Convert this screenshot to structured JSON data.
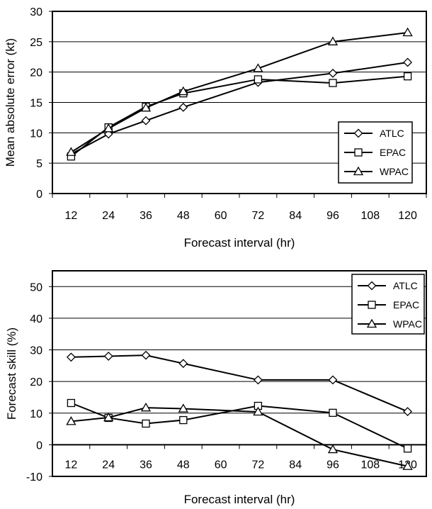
{
  "chart_data": [
    {
      "type": "line",
      "title": "",
      "xlabel": "Forecast interval (hr)",
      "ylabel": "Mean absolute error (kt)",
      "x_ticks": [
        "12",
        "24",
        "36",
        "48",
        "60",
        "72",
        "84",
        "96",
        "108",
        "120"
      ],
      "y_ticks": [
        "0",
        "5",
        "10",
        "15",
        "20",
        "25",
        "30"
      ],
      "ylim": [
        0,
        30
      ],
      "xlim": [
        6,
        126
      ],
      "grid": "horizontal",
      "legend_position": "bottom-right",
      "series": [
        {
          "name": "ATLC",
          "marker": "diamond",
          "x": [
            12,
            24,
            36,
            48,
            72,
            96,
            120
          ],
          "values": [
            6.5,
            9.8,
            12.0,
            14.2,
            18.3,
            19.8,
            21.6
          ]
        },
        {
          "name": "EPAC",
          "marker": "square",
          "x": [
            12,
            24,
            36,
            48,
            72,
            96,
            120
          ],
          "values": [
            6.1,
            10.9,
            14.3,
            16.5,
            18.8,
            18.2,
            19.3
          ]
        },
        {
          "name": "WPAC",
          "marker": "triangle",
          "x": [
            12,
            24,
            36,
            48,
            72,
            96,
            120
          ],
          "values": [
            6.8,
            10.7,
            14.1,
            16.8,
            20.6,
            25.0,
            26.5
          ]
        }
      ]
    },
    {
      "type": "line",
      "title": "",
      "xlabel": "Forecast interval (hr)",
      "ylabel": "Forecast skill (%)",
      "x_ticks": [
        "12",
        "24",
        "36",
        "48",
        "60",
        "72",
        "84",
        "96",
        "108",
        "120"
      ],
      "y_ticks": [
        "-10",
        "0",
        "10",
        "20",
        "30",
        "40",
        "50"
      ],
      "ylim": [
        -10,
        55
      ],
      "xlim": [
        6,
        126
      ],
      "grid": "horizontal",
      "legend_position": "top-right",
      "series": [
        {
          "name": "ATLC",
          "marker": "diamond",
          "x": [
            12,
            24,
            36,
            48,
            72,
            96,
            120
          ],
          "values": [
            27.7,
            28.0,
            28.3,
            25.7,
            20.5,
            20.5,
            10.5
          ]
        },
        {
          "name": "EPAC",
          "marker": "square",
          "x": [
            12,
            24,
            36,
            48,
            72,
            96,
            120
          ],
          "values": [
            13.2,
            8.5,
            6.7,
            7.8,
            12.3,
            10.1,
            -1.2
          ]
        },
        {
          "name": "WPAC",
          "marker": "triangle",
          "x": [
            12,
            24,
            36,
            48,
            72,
            96,
            120
          ],
          "values": [
            7.4,
            8.6,
            11.7,
            11.4,
            10.4,
            -1.5,
            -6.8
          ]
        }
      ]
    }
  ]
}
